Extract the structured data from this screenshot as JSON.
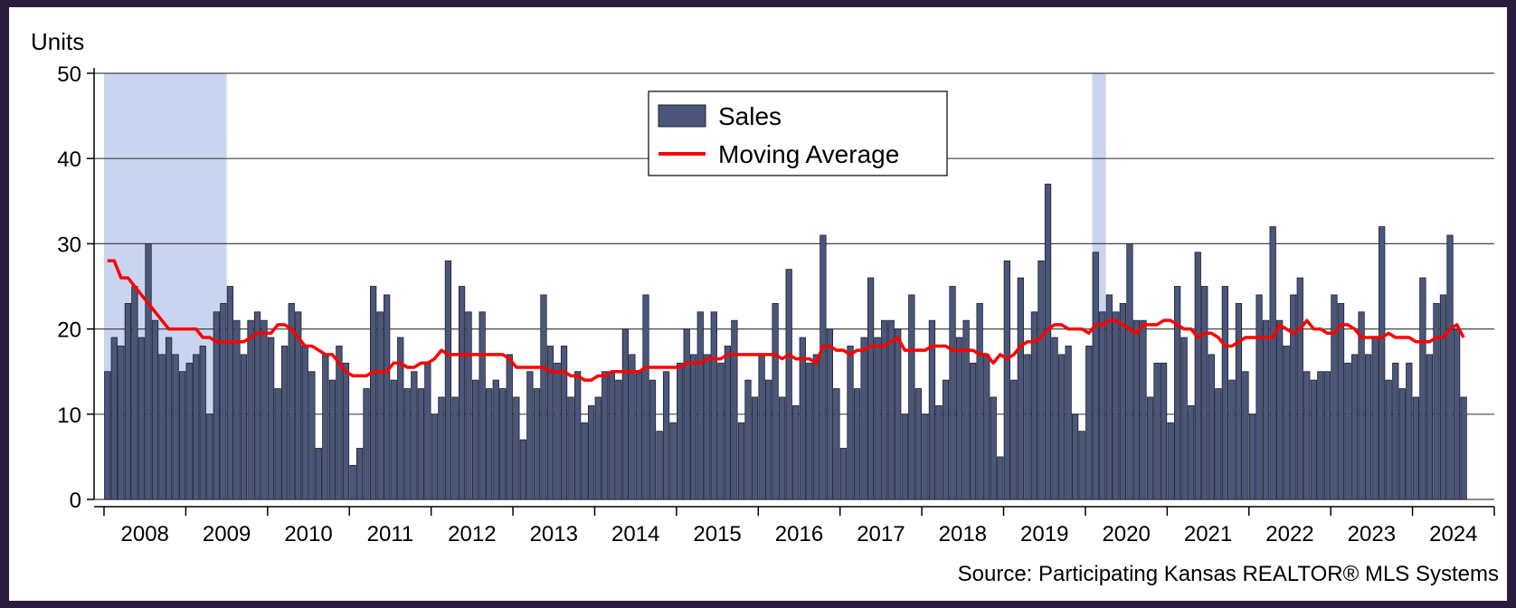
{
  "chart_data": {
    "type": "bar",
    "y_axis_label": "Units",
    "source": "Source: Participating Kansas REALTOR® MLS Systems",
    "xlim": [
      2008,
      2025
    ],
    "xticks": [
      2008,
      2009,
      2010,
      2011,
      2012,
      2013,
      2014,
      2015,
      2016,
      2017,
      2018,
      2019,
      2020,
      2021,
      2022,
      2023,
      2024
    ],
    "ylim": [
      0,
      50
    ],
    "yticks": [
      0,
      10,
      20,
      30,
      40,
      50
    ],
    "grid": true,
    "legend_position": "top-center",
    "shaded_periods": [
      {
        "start": 2008,
        "end": 2009.5
      },
      {
        "start": 2020.083,
        "end": 2020.25
      }
    ],
    "shade_color": "#c9d4ee",
    "x": [
      2008.042,
      2008.125,
      2008.208,
      2008.292,
      2008.375,
      2008.458,
      2008.542,
      2008.625,
      2008.708,
      2008.792,
      2008.875,
      2008.958,
      2009.042,
      2009.125,
      2009.208,
      2009.292,
      2009.375,
      2009.458,
      2009.542,
      2009.625,
      2009.708,
      2009.792,
      2009.875,
      2009.958,
      2010.042,
      2010.125,
      2010.208,
      2010.292,
      2010.375,
      2010.458,
      2010.542,
      2010.625,
      2010.708,
      2010.792,
      2010.875,
      2010.958,
      2011.042,
      2011.125,
      2011.208,
      2011.292,
      2011.375,
      2011.458,
      2011.542,
      2011.625,
      2011.708,
      2011.792,
      2011.875,
      2011.958,
      2012.042,
      2012.125,
      2012.208,
      2012.292,
      2012.375,
      2012.458,
      2012.542,
      2012.625,
      2012.708,
      2012.792,
      2012.875,
      2012.958,
      2013.042,
      2013.125,
      2013.208,
      2013.292,
      2013.375,
      2013.458,
      2013.542,
      2013.625,
      2013.708,
      2013.792,
      2013.875,
      2013.958,
      2014.042,
      2014.125,
      2014.208,
      2014.292,
      2014.375,
      2014.458,
      2014.542,
      2014.625,
      2014.708,
      2014.792,
      2014.875,
      2014.958,
      2015.042,
      2015.125,
      2015.208,
      2015.292,
      2015.375,
      2015.458,
      2015.542,
      2015.625,
      2015.708,
      2015.792,
      2015.875,
      2015.958,
      2016.042,
      2016.125,
      2016.208,
      2016.292,
      2016.375,
      2016.458,
      2016.542,
      2016.625,
      2016.708,
      2016.792,
      2016.875,
      2016.958,
      2017.042,
      2017.125,
      2017.208,
      2017.292,
      2017.375,
      2017.458,
      2017.542,
      2017.625,
      2017.708,
      2017.792,
      2017.875,
      2017.958,
      2018.042,
      2018.125,
      2018.208,
      2018.292,
      2018.375,
      2018.458,
      2018.542,
      2018.625,
      2018.708,
      2018.792,
      2018.875,
      2018.958,
      2019.042,
      2019.125,
      2019.208,
      2019.292,
      2019.375,
      2019.458,
      2019.542,
      2019.625,
      2019.708,
      2019.792,
      2019.875,
      2019.958,
      2020.042,
      2020.125,
      2020.208,
      2020.292,
      2020.375,
      2020.458,
      2020.542,
      2020.625,
      2020.708,
      2020.792,
      2020.875,
      2020.958,
      2021.042,
      2021.125,
      2021.208,
      2021.292,
      2021.375,
      2021.458,
      2021.542,
      2021.625,
      2021.708,
      2021.792,
      2021.875,
      2021.958,
      2022.042,
      2022.125,
      2022.208,
      2022.292,
      2022.375,
      2022.458,
      2022.542,
      2022.625,
      2022.708,
      2022.792,
      2022.875,
      2022.958,
      2023.042,
      2023.125,
      2023.208,
      2023.292,
      2023.375,
      2023.458,
      2023.542,
      2023.625,
      2023.708,
      2023.792,
      2023.875,
      2023.958,
      2024.042,
      2024.125,
      2024.208,
      2024.292,
      2024.375,
      2024.458,
      2024.542,
      2024.625
    ],
    "series": [
      {
        "name": "Sales",
        "type": "bar",
        "color": "#4b5679",
        "values": [
          15,
          19,
          18,
          23,
          25,
          19,
          30,
          21,
          17,
          19,
          17,
          15,
          16,
          17,
          18,
          10,
          22,
          23,
          25,
          21,
          17,
          21,
          22,
          21,
          19,
          13,
          18,
          23,
          22,
          18,
          15,
          6,
          17,
          14,
          18,
          16,
          4,
          6,
          13,
          25,
          22,
          24,
          14,
          19,
          13,
          15,
          13,
          16,
          10,
          12,
          28,
          12,
          25,
          22,
          14,
          22,
          13,
          14,
          13,
          17,
          12,
          7,
          15,
          13,
          24,
          18,
          16,
          18,
          12,
          15,
          9,
          11,
          12,
          15,
          15,
          14,
          20,
          17,
          15,
          24,
          14,
          8,
          15,
          9,
          16,
          20,
          17,
          22,
          17,
          22,
          16,
          18,
          21,
          9,
          14,
          12,
          17,
          14,
          23,
          12,
          27,
          11,
          19,
          16,
          17,
          31,
          20,
          13,
          6,
          18,
          13,
          19,
          26,
          19,
          21,
          21,
          20,
          10,
          24,
          13,
          10,
          21,
          11,
          14,
          25,
          19,
          21,
          16,
          23,
          17,
          12,
          5,
          28,
          14,
          26,
          17,
          22,
          28,
          37,
          19,
          17,
          18,
          10,
          8,
          18,
          29,
          22,
          24,
          22,
          23,
          30,
          21,
          21,
          12,
          16,
          16,
          9,
          25,
          19,
          11,
          29,
          25,
          17,
          13,
          25,
          14,
          23,
          15,
          10,
          24,
          21,
          32,
          21,
          18,
          24,
          26,
          15,
          14,
          15,
          15,
          24,
          23,
          16,
          17,
          22,
          17,
          19,
          32,
          14,
          16,
          13,
          16,
          12,
          26,
          17,
          23,
          24,
          31,
          20,
          12
        ]
      },
      {
        "name": "Moving Average",
        "type": "line",
        "color": "#ff0000",
        "values": [
          28,
          28,
          26,
          26,
          25,
          24,
          23,
          22,
          21,
          20,
          20,
          20,
          20,
          20,
          19,
          19,
          18.5,
          18.5,
          18.5,
          18.5,
          18.5,
          19,
          19.5,
          19.5,
          19.5,
          20.5,
          20.5,
          20,
          19,
          18,
          18,
          17.5,
          17,
          17,
          16,
          15,
          14.5,
          14.5,
          14.5,
          15,
          15,
          15,
          16,
          16,
          15.5,
          15.5,
          16,
          16,
          16.5,
          17.5,
          17,
          17,
          17,
          17,
          17,
          17,
          17,
          17,
          17,
          16.5,
          15.5,
          15.5,
          15.5,
          15.5,
          15.5,
          15,
          15,
          15,
          14.5,
          14.5,
          14,
          14,
          14.5,
          14.5,
          15,
          15,
          15,
          15,
          15,
          15.5,
          15.5,
          15.5,
          15.5,
          15.5,
          15.5,
          16,
          16,
          16,
          16.5,
          16.5,
          16.5,
          17,
          17,
          17,
          17,
          17,
          17,
          17,
          17,
          16.5,
          17,
          16.5,
          16.5,
          16.5,
          16,
          18,
          18,
          17.5,
          17.5,
          17,
          17.5,
          17.5,
          18,
          18,
          18,
          18.5,
          19,
          17.5,
          17.5,
          17.5,
          17.5,
          18,
          18,
          18,
          17.5,
          17.5,
          17.5,
          17.5,
          17,
          17,
          16,
          17,
          16.5,
          17,
          18,
          18.5,
          18.5,
          19,
          20,
          20.5,
          20.5,
          20,
          20,
          20,
          19.5,
          20.5,
          20.5,
          21,
          21,
          20.5,
          20,
          19.5,
          20.5,
          20.5,
          20.5,
          21,
          21,
          20.5,
          20,
          20,
          19,
          19.5,
          19.5,
          19,
          18,
          18,
          18.5,
          19,
          19,
          19,
          19,
          19,
          20.5,
          20,
          19.5,
          20,
          21,
          20,
          20,
          19.5,
          19.5,
          20.5,
          20.5,
          20,
          19,
          19,
          19,
          19,
          19.5,
          19,
          19,
          19,
          18.5,
          18.5,
          18.5,
          19,
          19,
          20,
          20.5,
          19
        ]
      }
    ]
  }
}
